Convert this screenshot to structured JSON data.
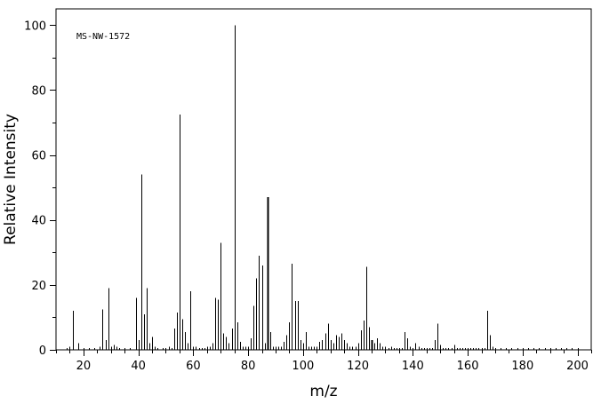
{
  "chart_data": {
    "type": "bar",
    "title": "",
    "annotation": "MS-NW-1572",
    "xlabel": "m/z",
    "ylabel": "Relative Intensity",
    "xlim": [
      10,
      205
    ],
    "ylim": [
      0,
      105
    ],
    "x_major_ticks": [
      20,
      40,
      60,
      80,
      100,
      120,
      140,
      160,
      180,
      200
    ],
    "x_minor_step": 5,
    "y_major_ticks": [
      0,
      20,
      40,
      60,
      80,
      100
    ],
    "y_minor_step": 10,
    "grid": false,
    "series": [
      {
        "x": [
          14,
          15,
          16,
          18,
          20,
          22,
          24,
          26,
          27,
          28,
          29,
          30,
          31,
          32,
          33,
          35,
          37,
          39,
          40,
          41,
          42,
          43,
          44,
          45,
          46,
          47,
          49,
          50,
          51,
          52,
          53,
          54,
          55,
          56,
          57,
          58,
          59,
          60,
          61,
          62,
          63,
          64,
          65,
          66,
          67,
          68,
          69,
          70,
          71,
          72,
          73,
          74,
          75,
          76,
          77,
          78,
          79,
          80,
          81,
          82,
          83,
          84,
          85,
          86,
          87,
          88,
          89,
          90,
          91,
          92,
          93,
          94,
          95,
          96,
          97,
          98,
          99,
          100,
          101,
          102,
          103,
          104,
          105,
          106,
          107,
          108,
          109,
          110,
          111,
          112,
          113,
          114,
          115,
          116,
          117,
          118,
          119,
          120,
          121,
          122,
          123,
          124,
          125,
          126,
          127,
          128,
          129,
          130,
          131,
          132,
          133,
          134,
          135,
          136,
          137,
          138,
          139,
          140,
          141,
          142,
          143,
          144,
          145,
          146,
          147,
          148,
          149,
          150,
          151,
          152,
          153,
          154,
          155,
          156,
          157,
          158,
          159,
          160,
          161,
          162,
          163,
          164,
          165,
          166,
          167,
          168,
          169,
          170,
          172,
          174,
          176,
          178,
          180,
          182,
          184,
          186,
          188,
          190,
          192,
          194,
          196,
          198,
          200
        ],
        "values": [
          0.5,
          1,
          12,
          2,
          0.5,
          0.5,
          0.5,
          1,
          12.5,
          3,
          19,
          1,
          1.5,
          1,
          0.5,
          0.5,
          0.5,
          16,
          3,
          54,
          11,
          19,
          2,
          4,
          1,
          0.5,
          0.5,
          0.5,
          1,
          0.5,
          6.5,
          11.5,
          72.5,
          9.5,
          5.5,
          2,
          18,
          1,
          1,
          0.5,
          0.5,
          0.5,
          1,
          1,
          2,
          16,
          15.5,
          33,
          5,
          4,
          2,
          6.5,
          100,
          8.5,
          2.5,
          1,
          1,
          1,
          3.5,
          13.5,
          22,
          29,
          26,
          2,
          47,
          5.5,
          1,
          1,
          1,
          1,
          2.5,
          4.5,
          8.5,
          26.5,
          15,
          15,
          3,
          2,
          5.5,
          1,
          1,
          1,
          1,
          2.5,
          3,
          5,
          8,
          3,
          2,
          4.5,
          4,
          5,
          3,
          2,
          1,
          1,
          1,
          2,
          6,
          9,
          25.5,
          7,
          3,
          2,
          3.5,
          2,
          1,
          1,
          0.5,
          1,
          0.5,
          0.5,
          0.5,
          0.5,
          5.5,
          3.5,
          1,
          0.5,
          2,
          1,
          0.5,
          0.5,
          0.5,
          0.5,
          0.5,
          3,
          8,
          1.5,
          0.5,
          0.5,
          0.5,
          0.5,
          1.5,
          0.5,
          0.5,
          0.5,
          0.5,
          0.5,
          0.5,
          0.5,
          0.5,
          0.5,
          0.5,
          0.5,
          12,
          4.5,
          1,
          0.5,
          0.5,
          0.5,
          0.5,
          0.5,
          0.5,
          0.5,
          0.5,
          0.5,
          0.5,
          0.5,
          0.5,
          0.5,
          0.5,
          0.5,
          0.5
        ],
        "emphasized_x": [
          87,
          125
        ]
      }
    ]
  }
}
